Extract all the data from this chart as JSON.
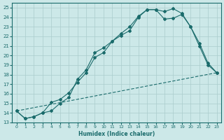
{
  "xlabel": "Humidex (Indice chaleur)",
  "ylabel": "",
  "bg_color": "#cce8e8",
  "line_color": "#1a6b6b",
  "grid_color": "#aacccc",
  "xlim": [
    -0.5,
    23.5
  ],
  "ylim": [
    13,
    25.5
  ],
  "yticks": [
    13,
    14,
    15,
    16,
    17,
    18,
    19,
    20,
    21,
    22,
    23,
    24,
    25
  ],
  "xticks": [
    0,
    1,
    2,
    3,
    4,
    5,
    6,
    7,
    8,
    9,
    10,
    11,
    12,
    13,
    14,
    15,
    16,
    17,
    18,
    19,
    20,
    21,
    22,
    23
  ],
  "line1_x": [
    0,
    1,
    2,
    3,
    4,
    5,
    6,
    7,
    8,
    9,
    10,
    11,
    12,
    13,
    14,
    15,
    16,
    17,
    18,
    19,
    20,
    21,
    22,
    23
  ],
  "line1_y": [
    14.2,
    13.4,
    13.6,
    14.0,
    14.2,
    15.0,
    15.6,
    17.5,
    18.5,
    20.3,
    20.8,
    21.5,
    22.1,
    22.6,
    24.0,
    24.8,
    24.8,
    23.8,
    23.9,
    24.3,
    23.0,
    21.0,
    19.0,
    18.2
  ],
  "line2_x": [
    0,
    1,
    2,
    3,
    4,
    5,
    6,
    7,
    8,
    9,
    10,
    11,
    12,
    13,
    14,
    15,
    16,
    17,
    18,
    19,
    20,
    21,
    22,
    23
  ],
  "line2_y": [
    14.2,
    13.4,
    13.6,
    14.0,
    15.1,
    15.4,
    16.1,
    17.2,
    18.2,
    19.8,
    20.3,
    21.5,
    22.3,
    23.0,
    24.1,
    24.8,
    24.8,
    24.6,
    24.9,
    24.4,
    23.0,
    21.3,
    19.2,
    18.2
  ],
  "line3_x": [
    0,
    23
  ],
  "line3_y": [
    14.2,
    18.2
  ]
}
